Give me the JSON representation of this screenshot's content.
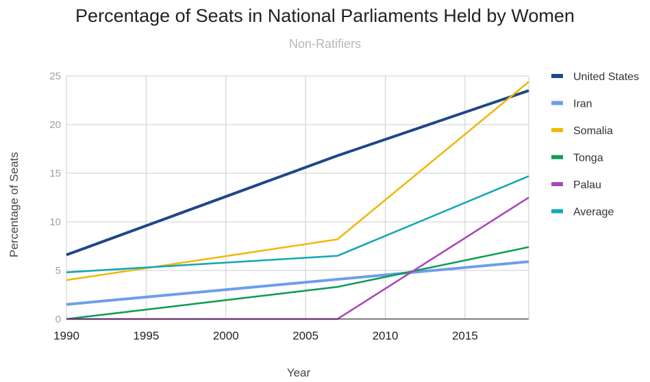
{
  "chart_data": {
    "type": "line",
    "title": "Percentage of Seats in National Parliaments Held by Women",
    "subtitle": "Non-Ratifiers",
    "xlabel": "Year",
    "ylabel": "Percentage of Seats",
    "xlim": [
      1990,
      2019
    ],
    "ylim": [
      0,
      25
    ],
    "x_ticks": [
      1990,
      1995,
      2000,
      2005,
      2010,
      2015
    ],
    "y_ticks": [
      0,
      5,
      10,
      15,
      20,
      25
    ],
    "grid": true,
    "legend_position": "right",
    "series": [
      {
        "name": "United States",
        "color": "#1f4788",
        "x": [
          1990,
          2007,
          2019
        ],
        "y": [
          6.6,
          16.8,
          23.5
        ]
      },
      {
        "name": "Iran",
        "color": "#6d9eeb",
        "x": [
          1990,
          2019
        ],
        "y": [
          1.5,
          5.9
        ]
      },
      {
        "name": "Somalia",
        "color": "#f1b80c",
        "x": [
          1990,
          2007,
          2019
        ],
        "y": [
          4.0,
          8.2,
          24.4
        ]
      },
      {
        "name": "Tonga",
        "color": "#0f9d58",
        "x": [
          1990,
          2007,
          2019
        ],
        "y": [
          0.0,
          3.3,
          7.4
        ]
      },
      {
        "name": "Palau",
        "color": "#ab47bc",
        "x": [
          1990,
          2007,
          2019
        ],
        "y": [
          0.0,
          0.0,
          12.5
        ]
      },
      {
        "name": "Average",
        "color": "#13a8b4",
        "x": [
          1990,
          2007,
          2019
        ],
        "y": [
          4.8,
          6.5,
          14.7
        ]
      }
    ]
  }
}
